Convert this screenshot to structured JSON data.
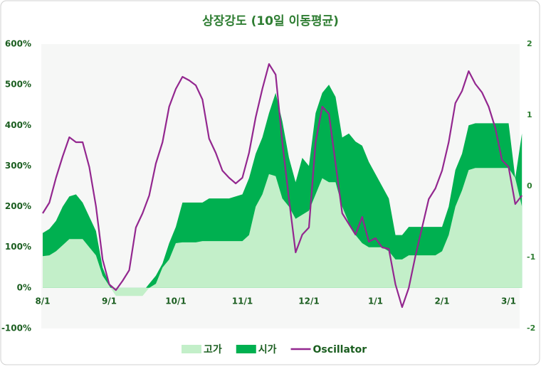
{
  "chart_data": {
    "type": "area-line",
    "title": "상장강도 (10일 이동평균)",
    "categories": [
      "8/1",
      null,
      null,
      null,
      null,
      null,
      null,
      null,
      null,
      null,
      "9/1",
      null,
      null,
      null,
      null,
      null,
      null,
      null,
      null,
      null,
      "10/1",
      null,
      null,
      null,
      null,
      null,
      null,
      null,
      null,
      null,
      "11/1",
      null,
      null,
      null,
      null,
      null,
      null,
      null,
      null,
      null,
      "12/1",
      null,
      null,
      null,
      null,
      null,
      null,
      null,
      null,
      null,
      "1/1",
      null,
      null,
      null,
      null,
      null,
      null,
      null,
      null,
      null,
      "2/1",
      null,
      null,
      null,
      null,
      null,
      null,
      null,
      null,
      null,
      "3/1",
      null,
      null
    ],
    "series": [
      {
        "name": "시가",
        "kind": "area",
        "color": "#00b050",
        "values": [
          135,
          145,
          165,
          200,
          225,
          230,
          210,
          175,
          140,
          50,
          10,
          -10,
          -10,
          -10,
          -10,
          -10,
          10,
          30,
          60,
          110,
          150,
          210,
          210,
          210,
          210,
          220,
          220,
          220,
          220,
          225,
          230,
          270,
          330,
          370,
          430,
          480,
          410,
          320,
          260,
          320,
          300,
          430,
          480,
          500,
          470,
          370,
          380,
          360,
          350,
          310,
          280,
          250,
          220,
          130,
          130,
          150,
          150,
          150,
          150,
          150,
          150,
          200,
          290,
          330,
          400,
          405,
          405,
          405,
          405,
          405,
          405,
          270,
          380
        ]
      },
      {
        "name": "고가",
        "kind": "area",
        "color": "#c3efc9",
        "values": [
          78,
          80,
          90,
          105,
          120,
          120,
          120,
          100,
          80,
          30,
          5,
          -20,
          -20,
          -20,
          -20,
          -20,
          0,
          10,
          50,
          70,
          110,
          112,
          112,
          112,
          115,
          115,
          115,
          115,
          115,
          115,
          115,
          130,
          200,
          230,
          280,
          275,
          220,
          200,
          170,
          180,
          190,
          230,
          270,
          260,
          260,
          200,
          160,
          130,
          110,
          100,
          100,
          100,
          90,
          70,
          70,
          80,
          80,
          80,
          80,
          80,
          90,
          130,
          200,
          240,
          290,
          295,
          295,
          295,
          295,
          295,
          295,
          270,
          200
        ]
      },
      {
        "name": "Oscillator",
        "kind": "line",
        "axis": "y2",
        "color": "#93278f",
        "values": [
          -0.38,
          -0.23,
          0.12,
          0.42,
          0.69,
          0.62,
          0.62,
          0.27,
          -0.28,
          -1.03,
          -1.38,
          -1.46,
          -1.33,
          -1.18,
          -0.58,
          -0.38,
          -0.13,
          0.32,
          0.62,
          1.12,
          1.37,
          1.54,
          1.49,
          1.42,
          1.22,
          0.67,
          0.47,
          0.22,
          0.12,
          0.04,
          0.12,
          0.47,
          0.97,
          1.37,
          1.72,
          1.57,
          0.62,
          -0.18,
          -0.93,
          -0.68,
          -0.58,
          0.62,
          1.12,
          1.02,
          0.32,
          -0.38,
          -0.53,
          -0.68,
          -0.43,
          -0.78,
          -0.73,
          -0.86,
          -0.88,
          -1.38,
          -1.7,
          -1.43,
          -0.98,
          -0.58,
          -0.18,
          -0.03,
          0.22,
          0.62,
          1.17,
          1.34,
          1.62,
          1.44,
          1.32,
          1.12,
          0.82,
          0.37,
          0.27,
          -0.25,
          -0.13
        ]
      }
    ],
    "legend_order": [
      "고가",
      "시가",
      "Oscillator"
    ],
    "ylim": [
      -100,
      600
    ],
    "yticks": [
      {
        "value": -100,
        "label": "-100%"
      },
      {
        "value": 0,
        "label": "0%"
      },
      {
        "value": 100,
        "label": "100%"
      },
      {
        "value": 200,
        "label": "200%"
      },
      {
        "value": 300,
        "label": "300%"
      },
      {
        "value": 400,
        "label": "400%"
      },
      {
        "value": 500,
        "label": "500%"
      },
      {
        "value": 600,
        "label": "600%"
      }
    ],
    "y2lim": [
      -2,
      2
    ],
    "y2ticks": [
      -2,
      -1,
      0,
      1,
      2
    ]
  }
}
